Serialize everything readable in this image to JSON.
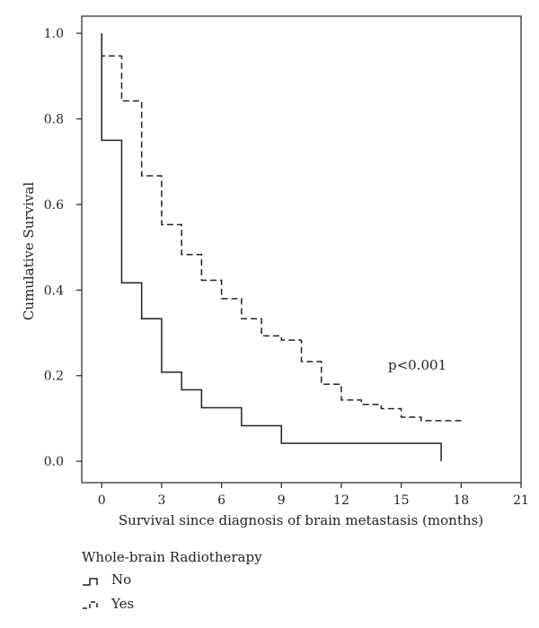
{
  "chart_data": {
    "type": "line",
    "step": true,
    "xlabel": "Survival since diagnosis of brain metastasis (months)",
    "ylabel": "Cumulative Survival",
    "xlim": [
      -1,
      21
    ],
    "ylim": [
      -0.05,
      1.04
    ],
    "xticks": [
      0,
      3,
      6,
      9,
      12,
      15,
      18,
      21
    ],
    "yticks": [
      "0.0",
      "0.2",
      "0.4",
      "0.6",
      "0.8",
      "1.0"
    ],
    "grid": false,
    "annotation": "p<0.001",
    "legend": {
      "title": "Whole-brain Radiotherapy",
      "placement": "bottom-left"
    },
    "series": [
      {
        "name": "No",
        "style": "solid",
        "x": [
          0,
          0,
          1,
          1,
          2,
          2,
          3,
          3,
          4,
          4,
          5,
          5,
          7,
          7,
          9,
          9,
          17,
          17
        ],
        "y": [
          1.0,
          0.75,
          0.75,
          0.417,
          0.417,
          0.333,
          0.333,
          0.208,
          0.208,
          0.167,
          0.167,
          0.125,
          0.125,
          0.083,
          0.083,
          0.042,
          0.042,
          0.0
        ]
      },
      {
        "name": "Yes",
        "style": "dashed",
        "x": [
          0,
          0,
          1,
          1,
          2,
          2,
          3,
          3,
          4,
          4,
          5,
          5,
          6,
          6,
          7,
          7,
          8,
          8,
          9,
          9,
          10,
          10,
          11,
          11,
          12,
          12,
          13,
          13,
          14,
          14,
          15,
          15,
          16,
          16,
          18
        ],
        "y": [
          1.0,
          0.947,
          0.947,
          0.842,
          0.842,
          0.667,
          0.667,
          0.553,
          0.553,
          0.483,
          0.483,
          0.423,
          0.423,
          0.38,
          0.38,
          0.333,
          0.333,
          0.293,
          0.293,
          0.283,
          0.283,
          0.233,
          0.233,
          0.18,
          0.18,
          0.143,
          0.143,
          0.133,
          0.133,
          0.123,
          0.123,
          0.103,
          0.103,
          0.095,
          0.095
        ]
      }
    ]
  }
}
